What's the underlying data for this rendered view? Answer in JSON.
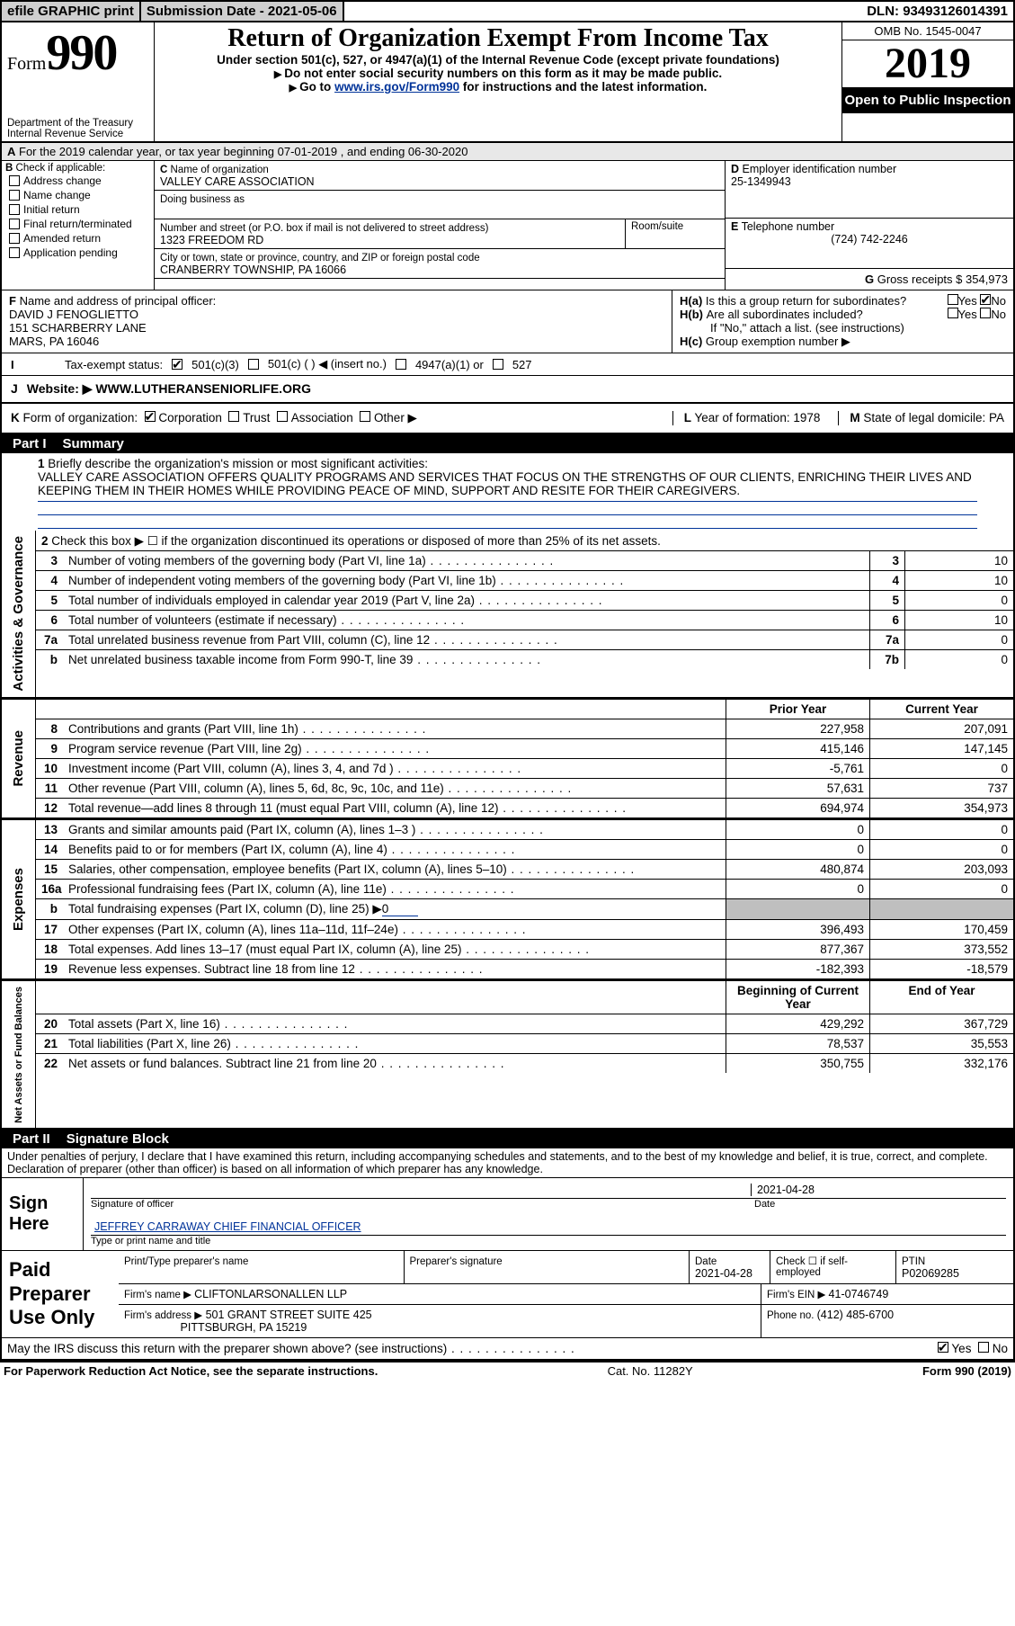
{
  "topbar": {
    "efile": "efile GRAPHIC print",
    "subdate_label": "Submission Date - ",
    "subdate": "2021-05-06",
    "dln_label": "DLN: ",
    "dln": "93493126014391"
  },
  "header": {
    "form_label": "Form",
    "form_num": "990",
    "dept1": "Department of the Treasury",
    "dept2": "Internal Revenue Service",
    "title": "Return of Organization Exempt From Income Tax",
    "sub1": "Under section 501(c), 527, or 4947(a)(1) of the Internal Revenue Code (except private foundations)",
    "sub2": "Do not enter social security numbers on this form as it may be made public.",
    "sub3_a": "Go to ",
    "sub3_link": "www.irs.gov/Form990",
    "sub3_b": " for instructions and the latest information.",
    "omb_label": "OMB No. ",
    "omb": "1545-0047",
    "year": "2019",
    "open": "Open to Public Inspection"
  },
  "sectionA": {
    "a_line": "For the 2019 calendar year, or tax year beginning 07-01-2019   , and ending 06-30-2020",
    "b_label": "Check if applicable:",
    "b_items": [
      "Address change",
      "Name change",
      "Initial return",
      "Final return/terminated",
      "Amended return",
      "Application pending"
    ],
    "c_label": "Name of organization",
    "c_value": "VALLEY CARE ASSOCIATION",
    "dba_label": "Doing business as",
    "dba_value": "",
    "addr_label": "Number and street (or P.O. box if mail is not delivered to street address)",
    "addr_value": "1323 FREEDOM RD",
    "room_label": "Room/suite",
    "city_label": "City or town, state or province, country, and ZIP or foreign postal code",
    "city_value": "CRANBERRY TOWNSHIP, PA  16066",
    "d_label": "Employer identification number",
    "d_value": "25-1349943",
    "e_label": "Telephone number",
    "e_value": "(724) 742-2246",
    "g_label": "Gross receipts $ ",
    "g_value": "354,973",
    "f_label": "Name and address of principal officer:",
    "f_name": "DAVID J FENOGLIETTO",
    "f_addr1": "151 SCHARBERRY LANE",
    "f_addr2": "MARS, PA 16046",
    "ha_label": "Is this a group return for subordinates?",
    "hb_label": "Are all subordinates included?",
    "hb_note": "If \"No,\" attach a list. (see instructions)",
    "hc_label": "Group exemption number ▶",
    "yes": "Yes",
    "no": "No"
  },
  "taxexempt": {
    "label": "Tax-exempt status:",
    "opts": [
      "501(c)(3)",
      "501(c) (  ) ◀ (insert no.)",
      "4947(a)(1) or",
      "527"
    ]
  },
  "website": {
    "label": "Website: ▶",
    "value": "WWW.LUTHERANSENIORLIFE.ORG"
  },
  "kline": {
    "label": "Form of organization:",
    "opts": [
      "Corporation",
      "Trust",
      "Association",
      "Other ▶"
    ],
    "l_label": "Year of formation: ",
    "l_value": "1978",
    "m_label": "State of legal domicile: ",
    "m_value": "PA"
  },
  "partI": {
    "title": "Part I",
    "subtitle": "Summary",
    "line1_label": "Briefly describe the organization's mission or most significant activities:",
    "mission": "VALLEY CARE ASSOCIATION OFFERS QUALITY PROGRAMS AND SERVICES THAT FOCUS ON THE STRENGTHS OF OUR CLIENTS, ENRICHING THEIR LIVES AND KEEPING THEM IN THEIR HOMES WHILE PROVIDING PEACE OF MIND, SUPPORT AND RESITE FOR THEIR CAREGIVERS.",
    "line2": "Check this box ▶ ☐  if the organization discontinued its operations or disposed of more than 25% of its net assets.",
    "groups": {
      "activities": "Activities & Governance",
      "revenue": "Revenue",
      "expenses": "Expenses",
      "netassets": "Net Assets or Fund Balances"
    },
    "simple_lines": [
      {
        "n": "3",
        "t": "Number of voting members of the governing body (Part VI, line 1a)",
        "box": "3",
        "v": "10"
      },
      {
        "n": "4",
        "t": "Number of independent voting members of the governing body (Part VI, line 1b)",
        "box": "4",
        "v": "10"
      },
      {
        "n": "5",
        "t": "Total number of individuals employed in calendar year 2019 (Part V, line 2a)",
        "box": "5",
        "v": "0"
      },
      {
        "n": "6",
        "t": "Total number of volunteers (estimate if necessary)",
        "box": "6",
        "v": "10"
      },
      {
        "n": "7a",
        "t": "Total unrelated business revenue from Part VIII, column (C), line 12",
        "box": "7a",
        "v": "0"
      },
      {
        "n": "b",
        "t": "Net unrelated business taxable income from Form 990-T, line 39",
        "box": "7b",
        "v": "0"
      }
    ],
    "col_py": "Prior Year",
    "col_cy": "Current Year",
    "rev_lines": [
      {
        "n": "8",
        "t": "Contributions and grants (Part VIII, line 1h)",
        "py": "227,958",
        "cy": "207,091"
      },
      {
        "n": "9",
        "t": "Program service revenue (Part VIII, line 2g)",
        "py": "415,146",
        "cy": "147,145"
      },
      {
        "n": "10",
        "t": "Investment income (Part VIII, column (A), lines 3, 4, and 7d )",
        "py": "-5,761",
        "cy": "0"
      },
      {
        "n": "11",
        "t": "Other revenue (Part VIII, column (A), lines 5, 6d, 8c, 9c, 10c, and 11e)",
        "py": "57,631",
        "cy": "737"
      },
      {
        "n": "12",
        "t": "Total revenue—add lines 8 through 11 (must equal Part VIII, column (A), line 12)",
        "py": "694,974",
        "cy": "354,973"
      }
    ],
    "exp_lines": [
      {
        "n": "13",
        "t": "Grants and similar amounts paid (Part IX, column (A), lines 1–3 )",
        "py": "0",
        "cy": "0"
      },
      {
        "n": "14",
        "t": "Benefits paid to or for members (Part IX, column (A), line 4)",
        "py": "0",
        "cy": "0"
      },
      {
        "n": "15",
        "t": "Salaries, other compensation, employee benefits (Part IX, column (A), lines 5–10)",
        "py": "480,874",
        "cy": "203,093"
      },
      {
        "n": "16a",
        "t": "Professional fundraising fees (Part IX, column (A), line 11e)",
        "py": "0",
        "cy": "0"
      }
    ],
    "line16b_label": "Total fundraising expenses (Part IX, column (D), line 25) ▶",
    "line16b_val": "0",
    "exp_lines2": [
      {
        "n": "17",
        "t": "Other expenses (Part IX, column (A), lines 11a–11d, 11f–24e)",
        "py": "396,493",
        "cy": "170,459"
      },
      {
        "n": "18",
        "t": "Total expenses. Add lines 13–17 (must equal Part IX, column (A), line 25)",
        "py": "877,367",
        "cy": "373,552"
      },
      {
        "n": "19",
        "t": "Revenue less expenses. Subtract line 18 from line 12",
        "py": "-182,393",
        "cy": "-18,579"
      }
    ],
    "col_boy": "Beginning of Current Year",
    "col_eoy": "End of Year",
    "net_lines": [
      {
        "n": "20",
        "t": "Total assets (Part X, line 16)",
        "py": "429,292",
        "cy": "367,729"
      },
      {
        "n": "21",
        "t": "Total liabilities (Part X, line 26)",
        "py": "78,537",
        "cy": "35,553"
      },
      {
        "n": "22",
        "t": "Net assets or fund balances. Subtract line 21 from line 20",
        "py": "350,755",
        "cy": "332,176"
      }
    ]
  },
  "partII": {
    "title": "Part II",
    "subtitle": "Signature Block",
    "jurat": "Under penalties of perjury, I declare that I have examined this return, including accompanying schedules and statements, and to the best of my knowledge and belief, it is true, correct, and complete. Declaration of preparer (other than officer) is based on all information of which preparer has any knowledge.",
    "sign_here": "Sign Here",
    "sig_officer_label": "Signature of officer",
    "date_label": "Date",
    "sig_date": "2021-04-28",
    "officer_name": "JEFFREY CARRAWAY  CHIEF FINANCIAL OFFICER",
    "officer_type_label": "Type or print name and title",
    "paid": "Paid Preparer Use Only",
    "prep_name_label": "Print/Type preparer's name",
    "prep_sig_label": "Preparer's signature",
    "prep_date": "2021-04-28",
    "self_emp": "Check ☐ if self-employed",
    "ptin_label": "PTIN",
    "ptin": "P02069285",
    "firm_name_label": "Firm's name   ▶ ",
    "firm_name": "CLIFTONLARSONALLEN LLP",
    "firm_ein_label": "Firm's EIN ▶ ",
    "firm_ein": "41-0746749",
    "firm_addr_label": "Firm's address ▶",
    "firm_addr1": "501 GRANT STREET SUITE 425",
    "firm_addr2": "PITTSBURGH, PA  15219",
    "phone_label": "Phone no. ",
    "phone": "(412) 485-6700",
    "discuss": "May the IRS discuss this return with the preparer shown above? (see instructions)"
  },
  "footer": {
    "left": "For Paperwork Reduction Act Notice, see the separate instructions.",
    "mid": "Cat. No. 11282Y",
    "right": "Form 990 (2019)"
  }
}
